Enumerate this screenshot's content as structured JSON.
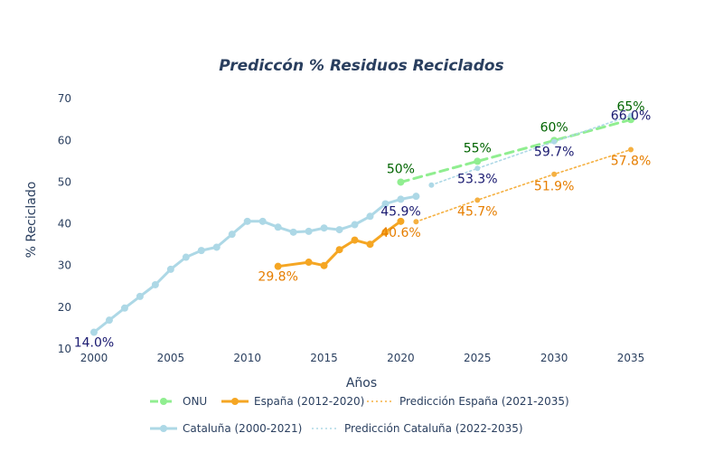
{
  "chart_data": {
    "type": "line",
    "title": "Prediccón % Residuos Reciclados",
    "xlabel": "Años",
    "ylabel": "% Reciclado",
    "xlim": [
      1999,
      2036
    ],
    "ylim": [
      10,
      72
    ],
    "xticks": [
      2000,
      2005,
      2010,
      2015,
      2020,
      2025,
      2030,
      2035
    ],
    "yticks": [
      10,
      20,
      30,
      40,
      50,
      60,
      70
    ],
    "grid": false,
    "legend_position": "bottom",
    "series": [
      {
        "key": "onu",
        "name": "ONU",
        "color": "#90ee90",
        "dash": "dash",
        "x": [
          2020,
          2025,
          2030,
          2035
        ],
        "y": [
          50,
          55,
          60,
          65
        ],
        "labels": [
          "50%",
          "55%",
          "60%",
          "65%"
        ],
        "label_color": "#006400"
      },
      {
        "key": "espana",
        "name": "España (2012-2020)",
        "color": "#f5a623",
        "dash": "solid",
        "x": [
          2012,
          2014,
          2015,
          2016,
          2017,
          2018,
          2019,
          2020
        ],
        "y": [
          29.8,
          30.8,
          30.0,
          33.8,
          36.1,
          35.1,
          38.0,
          40.6
        ],
        "labels": [
          "29.8%",
          "",
          "",
          "",
          "",
          "",
          "",
          "40.6%"
        ],
        "label_color": "#e67e00"
      },
      {
        "key": "pred_espana",
        "name": "Predicción España (2021-2035)",
        "color": "#f5b041",
        "dash": "dot",
        "x": [
          2021,
          2025,
          2030,
          2035
        ],
        "y": [
          40.5,
          45.7,
          51.9,
          57.8
        ],
        "labels": [
          "",
          "45.7%",
          "51.9%",
          "57.8%"
        ],
        "label_color": "#e67e00"
      },
      {
        "key": "cataluna",
        "name": "Cataluña (2000-2021)",
        "color": "#add8e6",
        "dash": "solid",
        "x": [
          2000,
          2001,
          2002,
          2003,
          2004,
          2005,
          2006,
          2007,
          2008,
          2009,
          2010,
          2011,
          2012,
          2013,
          2014,
          2015,
          2016,
          2017,
          2018,
          2019,
          2020,
          2021
        ],
        "y": [
          14.0,
          16.9,
          19.8,
          22.6,
          25.4,
          29.1,
          32.0,
          33.6,
          34.4,
          37.5,
          40.6,
          40.6,
          39.2,
          38.0,
          38.2,
          39.0,
          38.6,
          39.8,
          41.8,
          44.8,
          45.9,
          46.6
        ],
        "labels": [
          "14.0%",
          "",
          "",
          "",
          "",
          "",
          "",
          "",
          "",
          "",
          "",
          "",
          "",
          "",
          "",
          "",
          "",
          "",
          "",
          "",
          "45.9%",
          ""
        ],
        "label_color": "#191970"
      },
      {
        "key": "pred_cataluna",
        "name": "Predicción Cataluña (2022-2035)",
        "color": "#add8e6",
        "dash": "dot",
        "x": [
          2022,
          2025,
          2030,
          2035
        ],
        "y": [
          49.3,
          53.3,
          59.7,
          66.0
        ],
        "labels": [
          "",
          "53.3%",
          "59.7%",
          "66.0%"
        ],
        "label_color": "#191970"
      }
    ]
  }
}
